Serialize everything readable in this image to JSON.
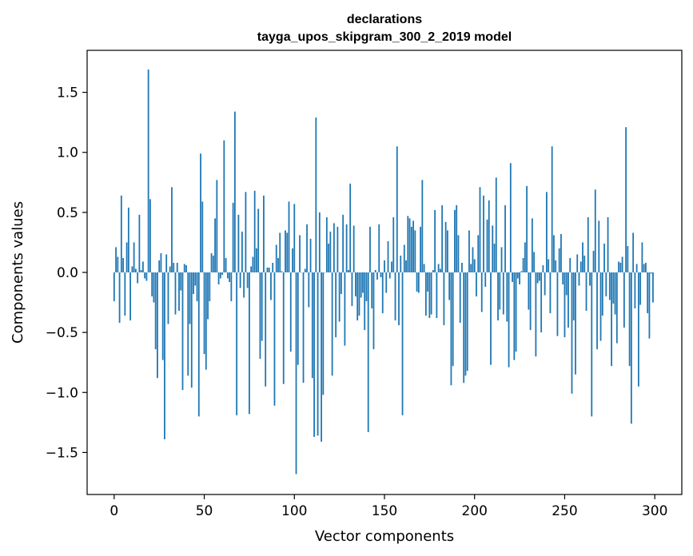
{
  "chart_data": {
    "type": "bar",
    "title": "declarations",
    "subtitle": "tayga_upos_skipgram_300_2_2019 model",
    "xlabel": "Vector components",
    "ylabel": "Components values",
    "xlim": [
      -15,
      315
    ],
    "ylim": [
      -1.85,
      1.85
    ],
    "xticks": [
      0,
      50,
      100,
      150,
      200,
      250,
      300
    ],
    "xtick_labels": [
      "0",
      "50",
      "100",
      "150",
      "200",
      "250",
      "300"
    ],
    "yticks": [
      -1.5,
      -1.0,
      -0.5,
      0.0,
      0.5,
      1.0,
      1.5
    ],
    "ytick_labels": [
      "−1.5",
      "−1.0",
      "−0.5",
      "0.0",
      "0.5",
      "1.0",
      "1.5"
    ],
    "grid": false,
    "bar_color": "#1f77b4",
    "values": [
      -0.24,
      0.21,
      0.13,
      -0.42,
      0.64,
      0.12,
      -0.36,
      0.25,
      0.54,
      -0.4,
      0.05,
      0.25,
      0.03,
      -0.09,
      0.48,
      0.02,
      0.09,
      -0.05,
      -0.07,
      1.69,
      0.61,
      -0.2,
      -0.25,
      -0.64,
      -0.88,
      0.1,
      0.16,
      -0.73,
      -1.39,
      0.15,
      -0.43,
      0.05,
      0.71,
      0.08,
      -0.35,
      0.08,
      -0.32,
      -0.15,
      -0.98,
      0.07,
      0.06,
      -0.86,
      -0.43,
      -0.96,
      -0.18,
      -0.11,
      -0.24,
      -1.2,
      0.99,
      0.59,
      -0.68,
      -0.81,
      -0.39,
      -0.24,
      0.16,
      0.14,
      0.45,
      0.77,
      -0.1,
      -0.05,
      -0.02,
      1.1,
      0.12,
      -0.05,
      -0.08,
      -0.24,
      0.58,
      1.34,
      -1.19,
      0.48,
      -0.13,
      0.34,
      -0.21,
      0.67,
      -0.13,
      -1.18,
      0.05,
      0.13,
      0.68,
      0.2,
      0.53,
      -0.72,
      -0.57,
      0.64,
      -0.95,
      0.04,
      0.04,
      -0.23,
      0.08,
      -1.11,
      0.23,
      0.12,
      0.33,
      0.01,
      -0.93,
      0.35,
      0.33,
      0.59,
      -0.66,
      0.2,
      0.57,
      -1.68,
      -0.77,
      0.31,
      0.0,
      -0.92,
      0.03,
      0.4,
      -0.29,
      0.28,
      -0.88,
      -1.37,
      1.29,
      -1.36,
      0.5,
      -1.41,
      -1.02,
      0.0,
      0.46,
      0.24,
      0.34,
      -0.86,
      0.41,
      -0.54,
      0.38,
      -0.41,
      -0.18,
      0.48,
      -0.61,
      0.4,
      0.02,
      0.74,
      -0.28,
      0.39,
      -0.2,
      -0.4,
      -0.36,
      -0.21,
      -0.17,
      -0.48,
      -0.24,
      -1.33,
      0.38,
      -0.3,
      -0.64,
      0.02,
      -0.06,
      0.4,
      -0.04,
      -0.34,
      0.1,
      -0.17,
      0.26,
      -0.05,
      0.09,
      0.46,
      -0.4,
      1.05,
      -0.44,
      0.14,
      -1.19,
      0.23,
      0.1,
      0.47,
      0.45,
      0.38,
      0.43,
      0.35,
      -0.16,
      -0.17,
      0.38,
      0.77,
      0.07,
      -0.36,
      -0.16,
      -0.38,
      -0.35,
      0.02,
      0.52,
      -0.38,
      0.07,
      0.03,
      0.56,
      -0.44,
      0.42,
      0.35,
      -0.23,
      -0.94,
      -0.78,
      0.52,
      0.56,
      0.31,
      -0.42,
      0.08,
      -0.92,
      -0.86,
      -0.82,
      0.35,
      0.07,
      0.21,
      0.11,
      -0.2,
      0.31,
      0.71,
      -0.33,
      0.64,
      -0.12,
      0.44,
      0.6,
      -0.77,
      0.39,
      0.24,
      0.79,
      -0.4,
      -0.31,
      0.21,
      -0.35,
      0.56,
      -0.41,
      -0.79,
      0.91,
      -0.08,
      -0.73,
      -0.66,
      -0.05,
      -0.1,
      0.01,
      0.12,
      0.25,
      0.72,
      -0.31,
      -0.48,
      0.45,
      0.17,
      -0.7,
      -0.09,
      -0.07,
      -0.5,
      0.06,
      -0.19,
      0.67,
      0.11,
      -0.34,
      1.05,
      0.31,
      0.1,
      -0.53,
      0.2,
      0.32,
      -0.1,
      -0.54,
      -0.19,
      -0.46,
      0.12,
      -1.01,
      -0.4,
      -0.85,
      0.15,
      -0.11,
      0.09,
      0.25,
      0.14,
      -0.32,
      0.46,
      -0.11,
      -1.2,
      0.18,
      0.69,
      -0.64,
      0.43,
      -0.57,
      -0.36,
      0.24,
      -0.2,
      0.46,
      -0.23,
      -0.78,
      -0.26,
      -0.35,
      -0.59,
      0.09,
      0.08,
      0.13,
      -0.46,
      1.21,
      0.22,
      -0.78,
      -1.26,
      0.33,
      -0.3,
      0.07,
      -0.95,
      -0.27,
      0.25,
      0.07,
      0.08,
      -0.34,
      -0.55,
      -0.01,
      -0.25
    ]
  }
}
